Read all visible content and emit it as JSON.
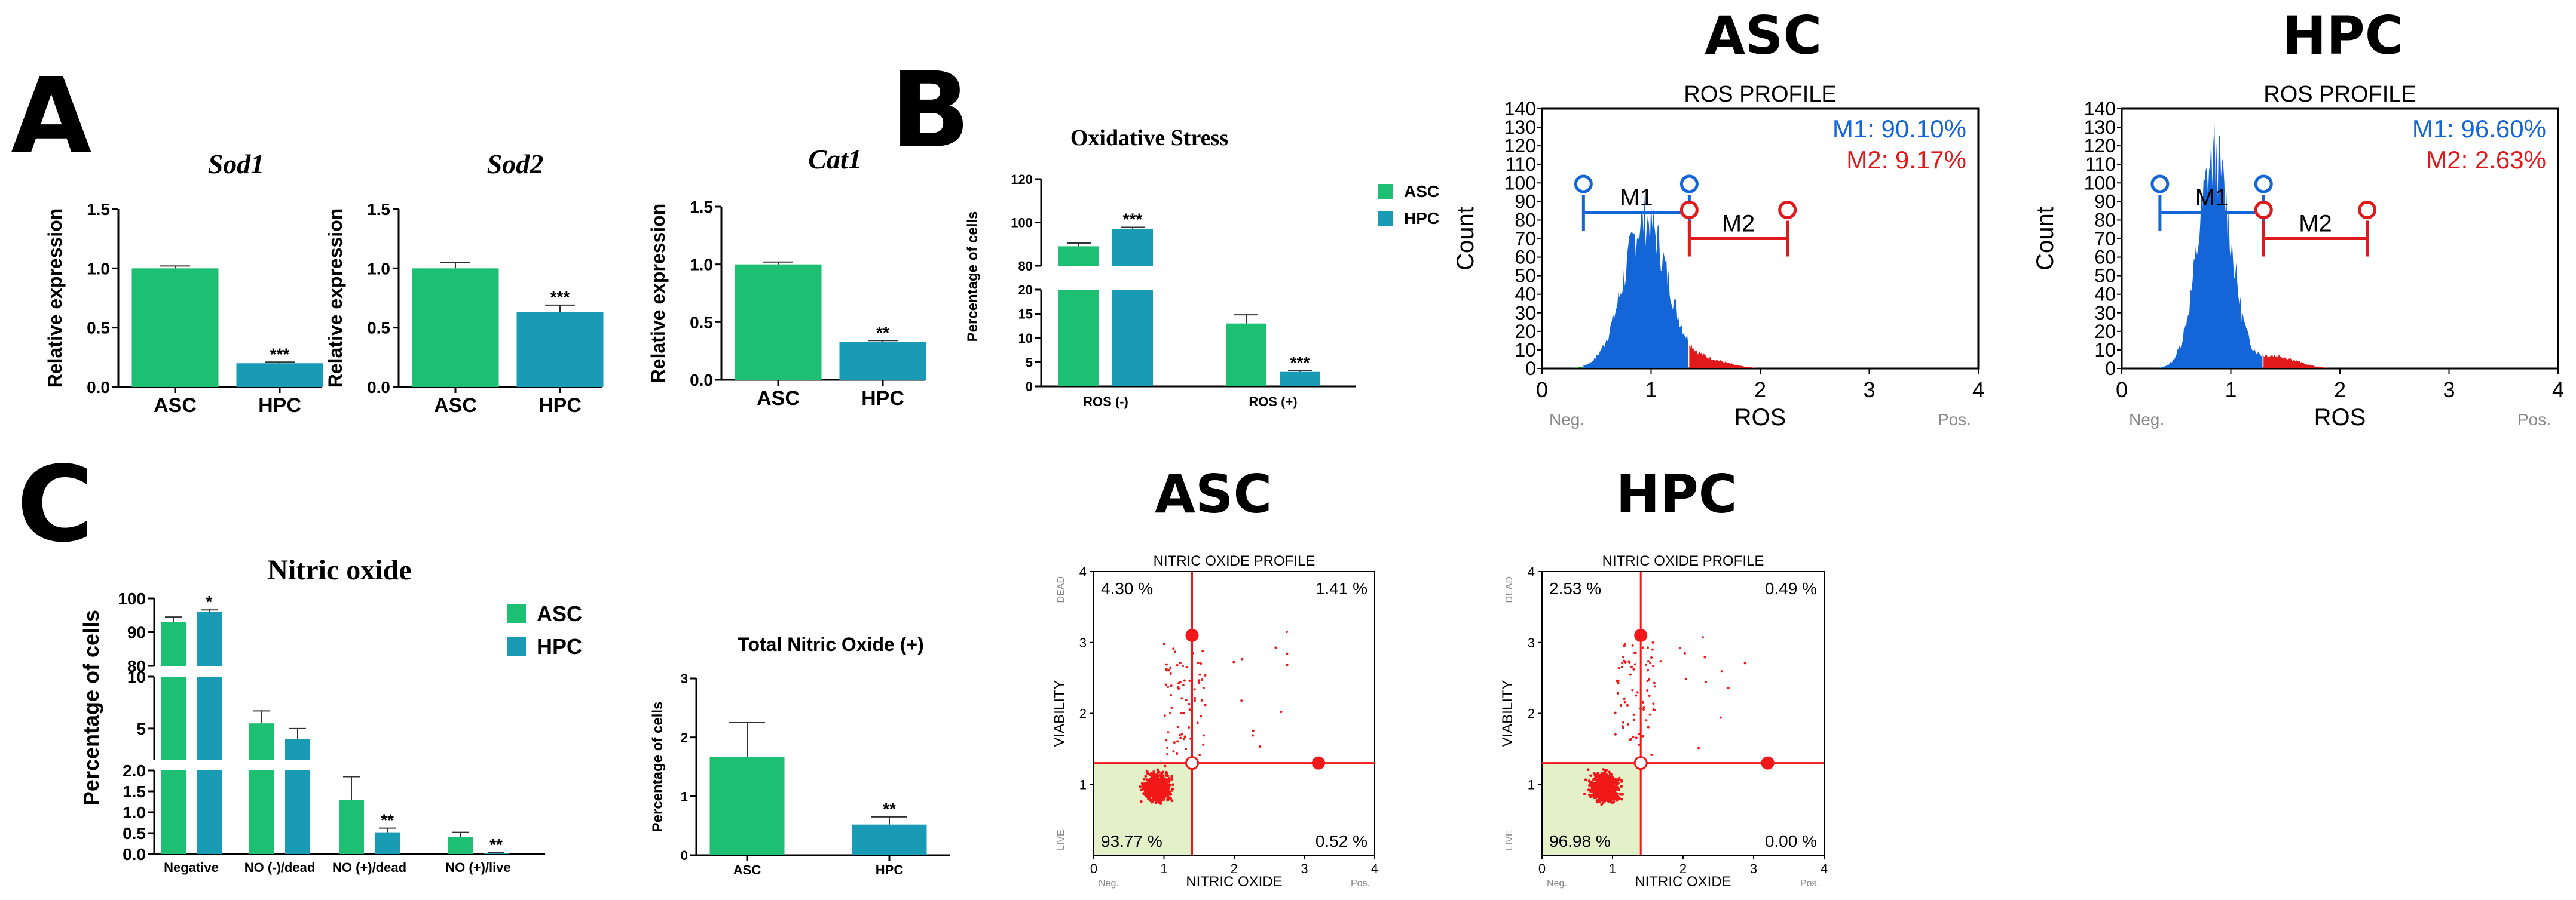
{
  "colors": {
    "asc": "#1dbf73",
    "hpc": "#1a9bb5",
    "m1": "#1466d8",
    "m2": "#e01a1a",
    "hist_green": "#1e8a2a",
    "dot": "#f01818",
    "live_quadrant": "#e4f0c8"
  },
  "panels": {
    "a": "A",
    "b": "B",
    "c": "C"
  },
  "headings": {
    "asc_top": "ASC",
    "hpc_top": "HPC",
    "asc_mid": "ASC",
    "hpc_mid": "HPC"
  },
  "chart_data": [
    {
      "id": "sod1",
      "type": "bar",
      "title": "Sod1",
      "ylabel": "Relative expression",
      "categories": [
        "ASC",
        "HPC"
      ],
      "values": [
        1.0,
        0.2
      ],
      "errors": [
        0.02,
        0.01
      ],
      "ylim": [
        0,
        1.5
      ],
      "yticks": [
        "0.0",
        "0.5",
        "1.0",
        "1.5"
      ],
      "significance": [
        "",
        "***"
      ]
    },
    {
      "id": "sod2",
      "type": "bar",
      "title": "Sod2",
      "ylabel": "Relative expression",
      "categories": [
        "ASC",
        "HPC"
      ],
      "values": [
        1.0,
        0.63
      ],
      "errors": [
        0.05,
        0.06
      ],
      "ylim": [
        0,
        1.5
      ],
      "yticks": [
        "0.0",
        "0.5",
        "1.0",
        "1.5"
      ],
      "significance": [
        "",
        "***"
      ]
    },
    {
      "id": "cat1",
      "type": "bar",
      "title": "Cat1",
      "ylabel": "Relative expression",
      "categories": [
        "ASC",
        "HPC"
      ],
      "values": [
        1.0,
        0.33
      ],
      "errors": [
        0.02,
        0.01
      ],
      "ylim": [
        0,
        1.5
      ],
      "yticks": [
        "0.0",
        "0.5",
        "1.0",
        "1.5"
      ],
      "significance": [
        "",
        "**"
      ]
    },
    {
      "id": "oxidative",
      "type": "bar",
      "title": "Oxidative Stress",
      "ylabel": "Percentage of cells",
      "categories": [
        "ROS (-)",
        "ROS (+)"
      ],
      "series": [
        {
          "name": "ASC",
          "values": [
            89,
            13
          ],
          "errors": [
            1.5,
            1.8
          ]
        },
        {
          "name": "HPC",
          "values": [
            97,
            3
          ],
          "errors": [
            0.8,
            0.3
          ]
        }
      ],
      "y_axis_breaks": [
        [
          0,
          20
        ],
        [
          80,
          120
        ]
      ],
      "yticks_lower": [
        "0",
        "5",
        "10",
        "15",
        "20"
      ],
      "yticks_upper": [
        "80",
        "100",
        "120"
      ],
      "significance": {
        "ROS (-)": [
          "",
          "***"
        ],
        "ROS (+)": [
          "",
          "***"
        ]
      },
      "legend": [
        "ASC",
        "HPC"
      ]
    },
    {
      "id": "ros_asc",
      "type": "area",
      "title": "ROS PROFILE",
      "xlabel": "ROS",
      "ylabel": "Count",
      "xlim": [
        0,
        4
      ],
      "ylim": [
        0,
        140
      ],
      "xticks": [
        "0",
        "1",
        "2",
        "3",
        "4"
      ],
      "yticks": [
        "0",
        "10",
        "20",
        "30",
        "40",
        "50",
        "60",
        "70",
        "80",
        "90",
        "100",
        "110",
        "120",
        "130",
        "140"
      ],
      "x_endpoints": [
        "Neg.",
        "Pos."
      ],
      "peak_x": 0.95,
      "peak_count": 84,
      "spread": 0.2,
      "threshold_x": 1.35,
      "gates": [
        {
          "name": "M1",
          "x_start": 0.38,
          "x_end": 1.35,
          "label": "M1: 90.10%"
        },
        {
          "name": "M2",
          "x_start": 1.35,
          "x_end": 2.25,
          "label": "M2: 9.17%"
        }
      ]
    },
    {
      "id": "ros_hpc",
      "type": "area",
      "title": "ROS PROFILE",
      "xlabel": "ROS",
      "ylabel": "Count",
      "xlim": [
        0,
        4
      ],
      "ylim": [
        0,
        140
      ],
      "xticks": [
        "0",
        "1",
        "2",
        "3",
        "4"
      ],
      "yticks": [
        "0",
        "10",
        "20",
        "30",
        "40",
        "50",
        "60",
        "70",
        "80",
        "90",
        "100",
        "110",
        "120",
        "130",
        "140"
      ],
      "x_endpoints": [
        "Neg.",
        "Pos."
      ],
      "peak_x": 0.85,
      "peak_count": 119,
      "spread": 0.15,
      "threshold_x": 1.3,
      "gates": [
        {
          "name": "M1",
          "x_start": 0.35,
          "x_end": 1.3,
          "label": "M1: 96.60%"
        },
        {
          "name": "M2",
          "x_start": 1.3,
          "x_end": 2.25,
          "label": "M2: 2.63%"
        }
      ]
    },
    {
      "id": "nitric",
      "type": "bar",
      "title": "Nitric oxide",
      "ylabel": "Percentage of cells",
      "categories": [
        "Negative",
        "NO (-)/dead",
        "NO (+)/dead",
        "NO (+)/live"
      ],
      "series": [
        {
          "name": "ASC",
          "values": [
            93,
            5.5,
            1.3,
            0.4
          ],
          "errors": [
            1.5,
            1.2,
            0.55,
            0.12
          ]
        },
        {
          "name": "HPC",
          "values": [
            96,
            4.0,
            0.52,
            0.02
          ],
          "errors": [
            0.6,
            1.0,
            0.1,
            0.01
          ]
        }
      ],
      "y_axis_breaks": [
        [
          0,
          2
        ],
        [
          2,
          10
        ],
        [
          80,
          100
        ]
      ],
      "yticks_lower": [
        "0.0",
        "0.5",
        "1.0",
        "1.5",
        "2.0"
      ],
      "yticks_mid": [
        "5",
        "10"
      ],
      "yticks_upper": [
        "80",
        "90",
        "100"
      ],
      "significance": {
        "Negative": [
          "",
          "*"
        ],
        "NO (-)/dead": [
          "",
          ""
        ],
        "NO (+)/dead": [
          "",
          "**"
        ],
        "NO (+)/live": [
          "",
          "**"
        ]
      },
      "legend": [
        "ASC",
        "HPC"
      ]
    },
    {
      "id": "total_no",
      "type": "bar",
      "title": "Total Nitric Oxide (+)",
      "ylabel": "Percentage of cells",
      "categories": [
        "ASC",
        "HPC"
      ],
      "values": [
        1.67,
        0.52
      ],
      "errors": [
        0.58,
        0.13
      ],
      "ylim": [
        0,
        3
      ],
      "yticks": [
        "0",
        "1",
        "2",
        "3"
      ],
      "significance": [
        "",
        "**"
      ]
    },
    {
      "id": "no_asc",
      "type": "scatter",
      "title": "NITRIC OXIDE PROFILE",
      "xlabel": "NITRIC OXIDE",
      "ylabel": "VIABILITY",
      "xlim": [
        0,
        4
      ],
      "ylim": [
        0,
        4
      ],
      "xticks": [
        "0",
        "1",
        "2",
        "3",
        "4"
      ],
      "yticks": [
        "1",
        "2",
        "3",
        "4"
      ],
      "x_endpoints": [
        "Neg.",
        "Pos."
      ],
      "y_endpoints": [
        "LIVE",
        "DEAD"
      ],
      "center_x": 0.9,
      "center_y": 0.95,
      "quadrant_cross": [
        1.4,
        1.3
      ],
      "handles": [
        [
          1.4,
          3.1
        ],
        [
          3.2,
          1.3
        ]
      ],
      "quadrants": {
        "top_left": "4.30 %",
        "top_right": "1.41 %",
        "bottom_left": "93.77 %",
        "bottom_right": "0.52 %"
      }
    },
    {
      "id": "no_hpc",
      "type": "scatter",
      "title": "NITRIC OXIDE PROFILE",
      "xlabel": "NITRIC OXIDE",
      "ylabel": "VIABILITY",
      "xlim": [
        0,
        4
      ],
      "ylim": [
        0,
        4
      ],
      "xticks": [
        "0",
        "1",
        "2",
        "3",
        "4"
      ],
      "yticks": [
        "1",
        "2",
        "3",
        "4"
      ],
      "x_endpoints": [
        "Neg.",
        "Pos."
      ],
      "y_endpoints": [
        "LIVE",
        "DEAD"
      ],
      "center_x": 0.9,
      "center_y": 0.95,
      "quadrant_cross": [
        1.4,
        1.3
      ],
      "handles": [
        [
          1.4,
          3.1
        ],
        [
          3.2,
          1.3
        ]
      ],
      "quadrants": {
        "top_left": "2.53 %",
        "top_right": "0.49 %",
        "bottom_left": "96.98 %",
        "bottom_right": "0.00 %"
      }
    }
  ]
}
